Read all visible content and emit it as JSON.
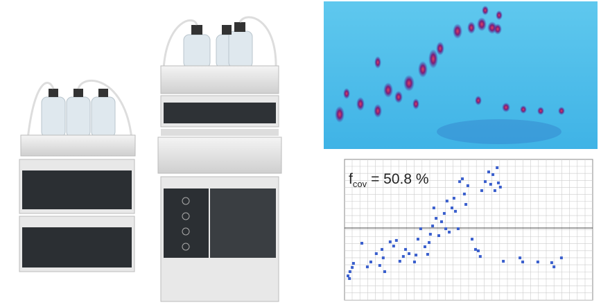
{
  "chart_data": {
    "type": "scatter",
    "annotation": {
      "symbol": "f",
      "subscript": "cov",
      "text": "= 50.8 %"
    },
    "xlim": [
      0,
      100
    ],
    "ylim": [
      0,
      100
    ],
    "grid": true,
    "series": [
      {
        "color": "#3a5fcd",
        "x": [
          1.4,
          2.2,
          3.1,
          3.6,
          2.0,
          7.0,
          9.2,
          10.6,
          12.8,
          14.2,
          15.1,
          15.6,
          16.2,
          18.4,
          19.8,
          20.9,
          22.3,
          23.7,
          24.6,
          26.0,
          28.2,
          28.8,
          29.6,
          30.7,
          32.4,
          33.5,
          34.1,
          34.6,
          35.5,
          36.0,
          36.9,
          38.0,
          39.1,
          40.2,
          40.8,
          41.3,
          42.2,
          43.3,
          44.1,
          44.7,
          45.8,
          46.4,
          47.5,
          48.3,
          48.9,
          49.7,
          51.4,
          52.8,
          53.9,
          54.7,
          55.3,
          56.7,
          58.1,
          58.9,
          59.8,
          60.6,
          61.5,
          62.0,
          62.8,
          64.0,
          70.7,
          71.8,
          77.9,
          83.5,
          84.4,
          87.4
        ],
        "values": [
          17.2,
          20.2,
          23.2,
          26.1,
          15.3,
          40.4,
          23.6,
          27.1,
          33.0,
          24.6,
          36.0,
          30.0,
          20.2,
          41.4,
          38.4,
          42.4,
          27.6,
          31.0,
          36.0,
          33.0,
          27.1,
          32.0,
          43.3,
          50.7,
          37.9,
          32.5,
          40.9,
          46.8,
          52.7,
          65.5,
          58.1,
          45.8,
          55.7,
          61.6,
          50.7,
          70.4,
          48.3,
          65.5,
          72.4,
          63.1,
          50.7,
          84.2,
          86.2,
          75.4,
          68.0,
          81.3,
          43.3,
          36.0,
          35.0,
          31.0,
          77.8,
          84.2,
          91.1,
          82.3,
          89.2,
          77.8,
          94.1,
          83.3,
          80.3,
          27.6,
          30.0,
          27.1,
          27.1,
          26.6,
          23.6,
          30.0
        ]
      }
    ]
  }
}
